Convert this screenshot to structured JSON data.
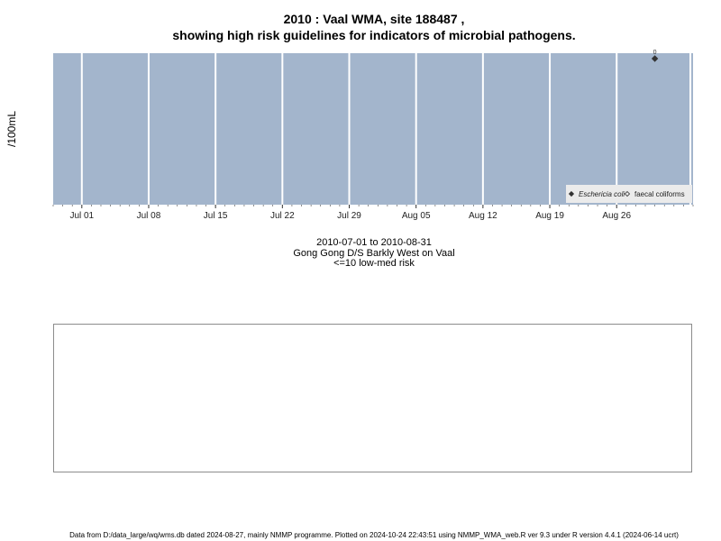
{
  "page": {
    "title_line1": "2010 : Vaal WMA, site 188487 ,",
    "title_line2": "showing high risk guidelines for indicators of microbial pathogens.",
    "y_unit_label": "/100mL",
    "date_range": "2010-07-01 to 2010-08-31",
    "site_name": "Gong Gong D/S Barkly West on Vaal",
    "risk_note": "<=10 low-med risk",
    "footer": "Data from D:/data_large/wq/wms.db dated 2024-08-27, mainly NMMP programme. Plotted on 2024-10-24 22:43:51 using NMMP_WMA_web.R ver 9.3 under R version 4.4.1 (2024-06-14 ucrt)"
  },
  "chart_data": {
    "type": "scatter",
    "ylabel": "/100mL",
    "x_range": [
      "2010-06-28",
      "2010-09-03"
    ],
    "x_ticks": [
      {
        "date": "2010-07-01",
        "label": "Jul 01"
      },
      {
        "date": "2010-07-08",
        "label": "Jul 08"
      },
      {
        "date": "2010-07-15",
        "label": "Jul 15"
      },
      {
        "date": "2010-07-22",
        "label": "Jul 22"
      },
      {
        "date": "2010-07-29",
        "label": "Jul 29"
      },
      {
        "date": "2010-08-05",
        "label": "Aug 05"
      },
      {
        "date": "2010-08-12",
        "label": "Aug 12"
      },
      {
        "date": "2010-08-19",
        "label": "Aug 19"
      },
      {
        "date": "2010-08-26",
        "label": "Aug 26"
      }
    ],
    "grid": true,
    "legend_position": "bottom-right",
    "series": [
      {
        "name": "Eschericia coli",
        "marker": "filled-diamond",
        "points": [
          {
            "x": "2010-08-30",
            "y": 0,
            "label": "0"
          }
        ]
      },
      {
        "name": "faecal coliforms",
        "marker": "open-diamond",
        "points": []
      }
    ],
    "colors": {
      "panel_bg": "#a3b5cc",
      "grid_line": "#ffffff",
      "marker": "#333333",
      "legend_bg": "#ebebeb"
    }
  }
}
